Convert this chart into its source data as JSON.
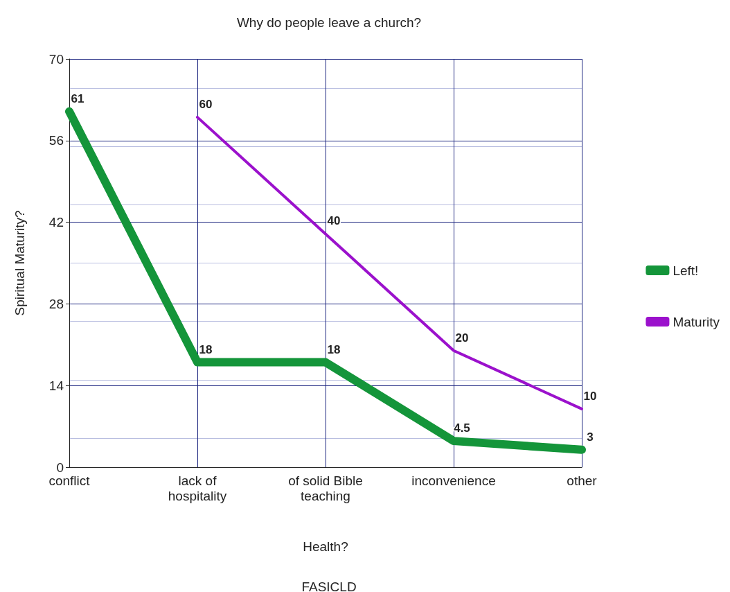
{
  "chart_data": {
    "type": "line",
    "title": "Why do people leave a church?",
    "xlabel": "Health?",
    "ylabel": "Spiritual Maturity?",
    "annotations": [
      "FASICLD"
    ],
    "categories": [
      "conflict",
      "lack of\nhospitality",
      "of solid Bible\nteaching",
      "inconvenience",
      "other"
    ],
    "series": [
      {
        "name": "Left!",
        "color": "#14953a",
        "values": [
          61,
          18,
          18,
          4.5,
          3
        ],
        "value_labels": [
          "61",
          "18",
          "18",
          "4.5",
          "3"
        ]
      },
      {
        "name": "Maturity",
        "color": "#9b11cc",
        "values": [
          null,
          60,
          40,
          20,
          10
        ],
        "value_labels": [
          null,
          "60",
          "40",
          "20",
          "10"
        ]
      }
    ],
    "ylim": [
      0,
      70
    ],
    "yticks": [
      0,
      14,
      28,
      42,
      56,
      70
    ],
    "grid": true,
    "legend": "right",
    "marker": "none",
    "line_style": "solid"
  }
}
